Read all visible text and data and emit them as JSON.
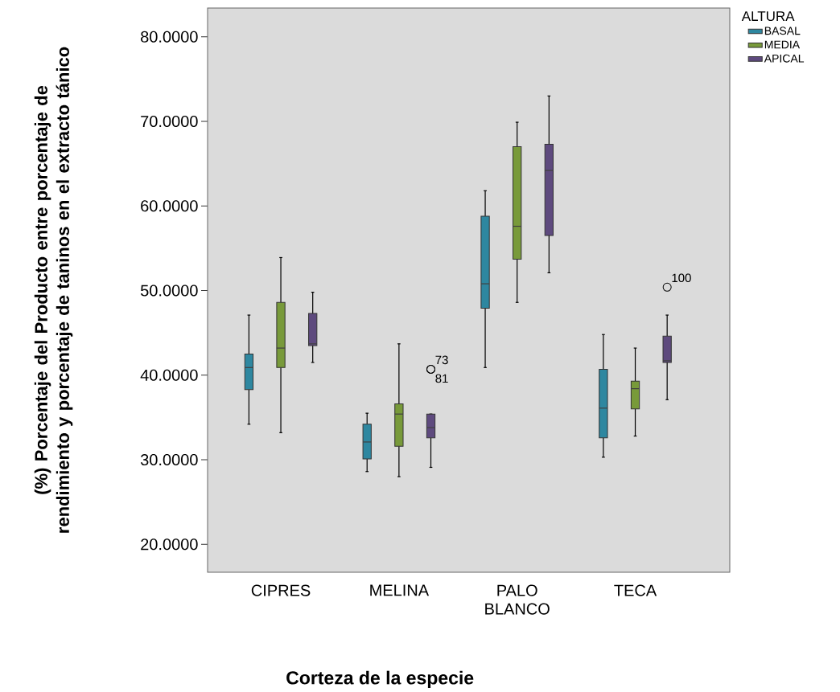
{
  "chart_data": {
    "type": "box",
    "xlabel": "Corteza de la especie",
    "ylabel": "(%)  Porcentaje del Producto entre porcentaje de rendimiento y porcentaje de taninos  en el extracto tánico",
    "legend_title": "ALTURA",
    "legend": "top right",
    "grid": false,
    "categories": [
      "CIPRES",
      "MELINA",
      "PALO BLANCO",
      "TECA"
    ],
    "ylim": [
      16.7,
      83.4
    ],
    "yticks": [
      {
        "value": 20,
        "label": "20.0000"
      },
      {
        "value": 30,
        "label": "30.0000"
      },
      {
        "value": 40,
        "label": "40.0000"
      },
      {
        "value": 50,
        "label": "50.0000"
      },
      {
        "value": 60,
        "label": "60.0000"
      },
      {
        "value": 70,
        "label": "70.0000"
      },
      {
        "value": 80,
        "label": "80.0000"
      }
    ],
    "series": [
      {
        "name": "BASAL",
        "color": "#2e87a0",
        "boxes": [
          {
            "low": 34.2,
            "q1": 38.3,
            "median": 40.9,
            "q3": 42.5,
            "high": 47.1
          },
          {
            "low": 28.6,
            "q1": 30.1,
            "median": 32.1,
            "q3": 34.2,
            "high": 35.5
          },
          {
            "low": 40.9,
            "q1": 47.9,
            "median": 50.8,
            "q3": 58.8,
            "high": 61.8
          },
          {
            "low": 30.3,
            "q1": 32.6,
            "median": 36.1,
            "q3": 40.7,
            "high": 44.8
          }
        ]
      },
      {
        "name": "MEDIA",
        "color": "#789a3a",
        "boxes": [
          {
            "low": 33.2,
            "q1": 40.9,
            "median": 43.2,
            "q3": 48.6,
            "high": 53.9
          },
          {
            "low": 28.0,
            "q1": 31.6,
            "median": 35.4,
            "q3": 36.6,
            "high": 43.7
          },
          {
            "low": 48.6,
            "q1": 53.7,
            "median": 57.6,
            "q3": 67.0,
            "high": 69.9
          },
          {
            "low": 32.8,
            "q1": 36.0,
            "median": 38.4,
            "q3": 39.3,
            "high": 43.2
          }
        ]
      },
      {
        "name": "APICAL",
        "color": "#5e4a7e",
        "boxes": [
          {
            "low": 41.5,
            "q1": 43.5,
            "median": 43.7,
            "q3": 47.3,
            "high": 49.8
          },
          {
            "low": 29.1,
            "q1": 32.6,
            "median": 33.8,
            "q3": 35.4,
            "high": 35.4,
            "outliers": [
              40.7,
              40.7
            ]
          },
          {
            "low": 52.1,
            "q1": 56.5,
            "median": 64.2,
            "q3": 67.3,
            "high": 73.0
          },
          {
            "low": 37.1,
            "q1": 41.5,
            "median": 41.7,
            "q3": 44.6,
            "high": 47.1,
            "outliers": [
              50.4
            ]
          }
        ]
      }
    ],
    "annotations": [
      "73",
      "81",
      "100"
    ]
  }
}
